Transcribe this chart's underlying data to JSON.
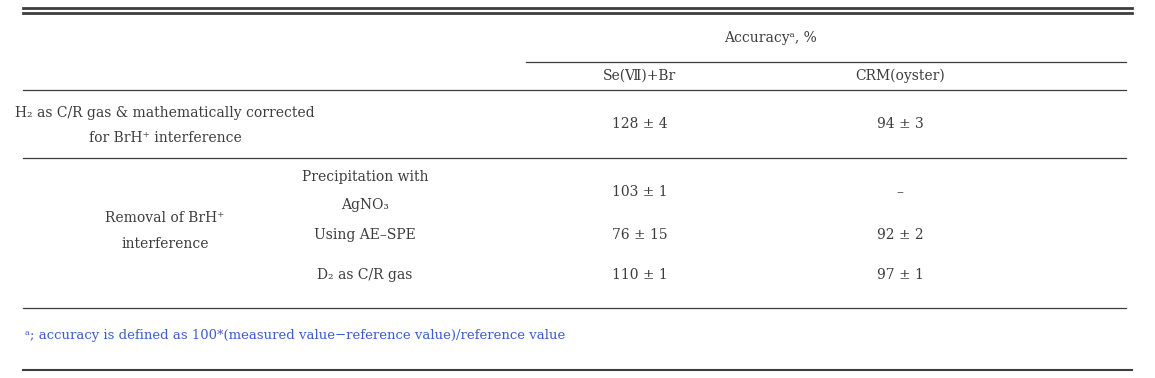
{
  "fig_width": 11.55,
  "fig_height": 3.78,
  "dpi": 100,
  "bg_color": "#ffffff",
  "header_group_label": "Accuracyᵃ, %",
  "col_headers": [
    "Se(Ⅶ)+Br",
    "CRM(oyster)"
  ],
  "row1_col0a": "H₂ as C/R gas & mathematically corrected",
  "row1_col0b": "for BrH⁺ interference",
  "row1_col1": "128 ± 4",
  "row1_col2": "94 ± 3",
  "row2_col0a": "Removal of BrH⁺",
  "row2_col0b": "interference",
  "row2_sub1a": "Precipitation with",
  "row2_sub1b": "AgNO₃",
  "row2_sub1_col1": "103 ± 1",
  "row2_sub1_col2": "–",
  "row2_sub2": "Using AE–SPE",
  "row2_sub2_col1": "76 ± 15",
  "row2_sub2_col2": "92 ± 2",
  "row2_sub3": "D₂ as C/R gas",
  "row2_sub3_col1": "110 ± 1",
  "row2_sub3_col2": "97 ± 1",
  "footnote": "ᵃ; accuracy is defined as 100*(measured value−reference value)/reference value",
  "text_color": "#3d3d3d",
  "line_color": "#3d3d3d",
  "font_size": 10.0,
  "footnote_color": "#3a5fcd"
}
